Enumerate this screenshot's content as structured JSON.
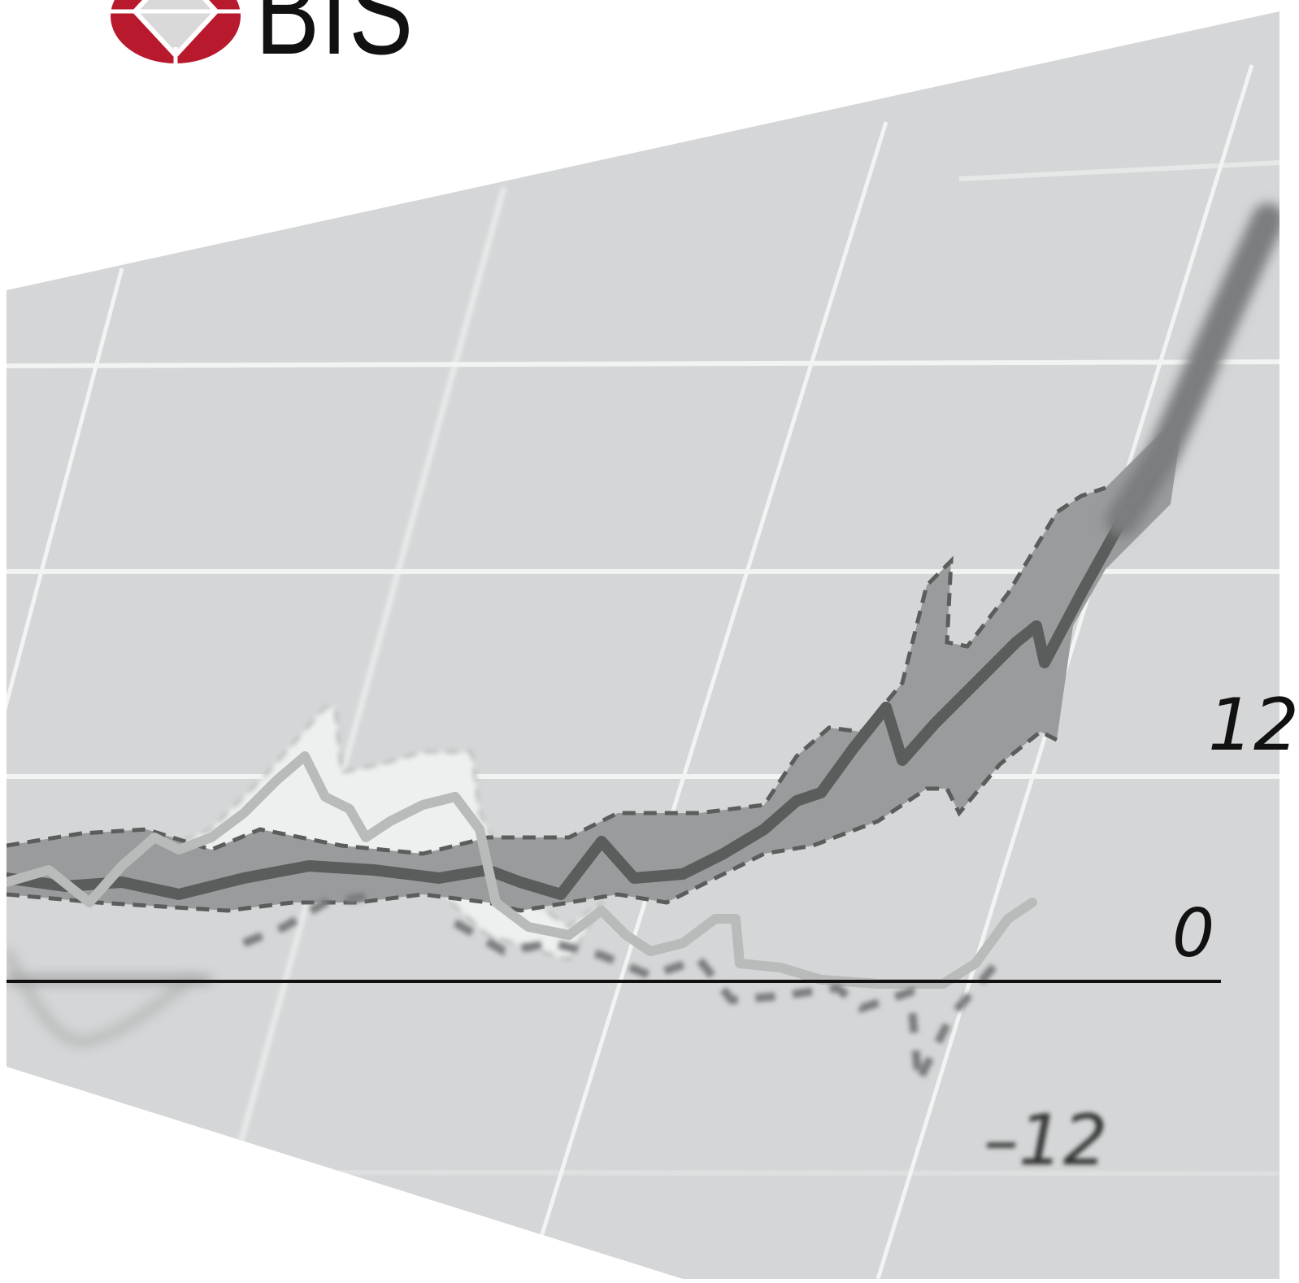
{
  "logo": {
    "text": "BIS",
    "colors": {
      "red": "#b8192c",
      "diamond": "#d9d9d9"
    }
  },
  "cover_graphic": {
    "tick_labels": [
      "12",
      "0",
      "–12"
    ],
    "colors": {
      "panel": "#d4d6d7",
      "grid": "#f2f3f3",
      "band_dark": "#9a9b9c",
      "band_light": "#eef0f0",
      "line_dark": "#5b5d5d",
      "line_light": "#b9baba",
      "zero_line": "#111111"
    }
  }
}
